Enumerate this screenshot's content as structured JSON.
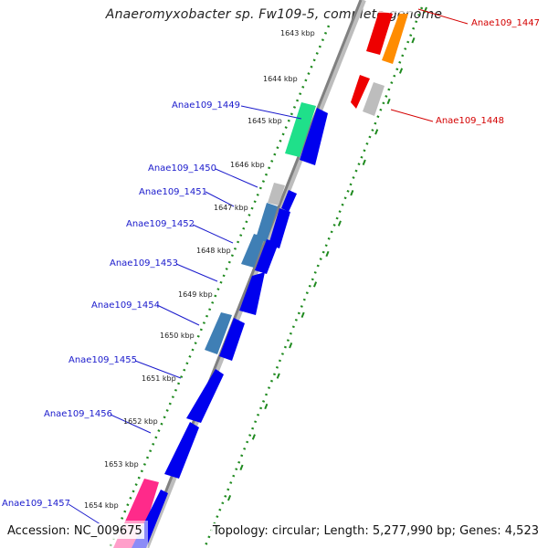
{
  "title": "Anaeromyxobacter sp. Fw109-5, complete genome",
  "footer": {
    "accession": "Accession: NC_009675",
    "summary": "Topology: circular; Length: 5,277,990 bp; Genes: 4,523"
  },
  "kbp_ticks": [
    "1643 kbp",
    "1644 kbp",
    "1645 kbp",
    "1646 kbp",
    "1647 kbp",
    "1648 kbp",
    "1649 kbp",
    "1650 kbp",
    "1651 kbp",
    "1652 kbp",
    "1653 kbp",
    "1654 kbp"
  ],
  "gene_labels": {
    "left": [
      "Anae109_1449",
      "Anae109_1450",
      "Anae109_1451",
      "Anae109_1452",
      "Anae109_1453",
      "Anae109_1454",
      "Anae109_1455",
      "Anae109_1456",
      "Anae109_1457"
    ],
    "right": [
      "Anae109_1447",
      "Anae109_1448"
    ]
  },
  "colors": {
    "backbone": "#808080",
    "ruler_dots": "#1f8a1f",
    "gene_blue": "#0000ee",
    "gene_steel": "#3f7fb5",
    "gene_gray": "#bdbdbd",
    "gene_green": "#1fe08a",
    "gene_red": "#ee0000",
    "gene_orange": "#ff8c00",
    "gene_pink": "#ff2a8a",
    "label_blue": "#1a1acc",
    "label_red": "#d40000"
  }
}
